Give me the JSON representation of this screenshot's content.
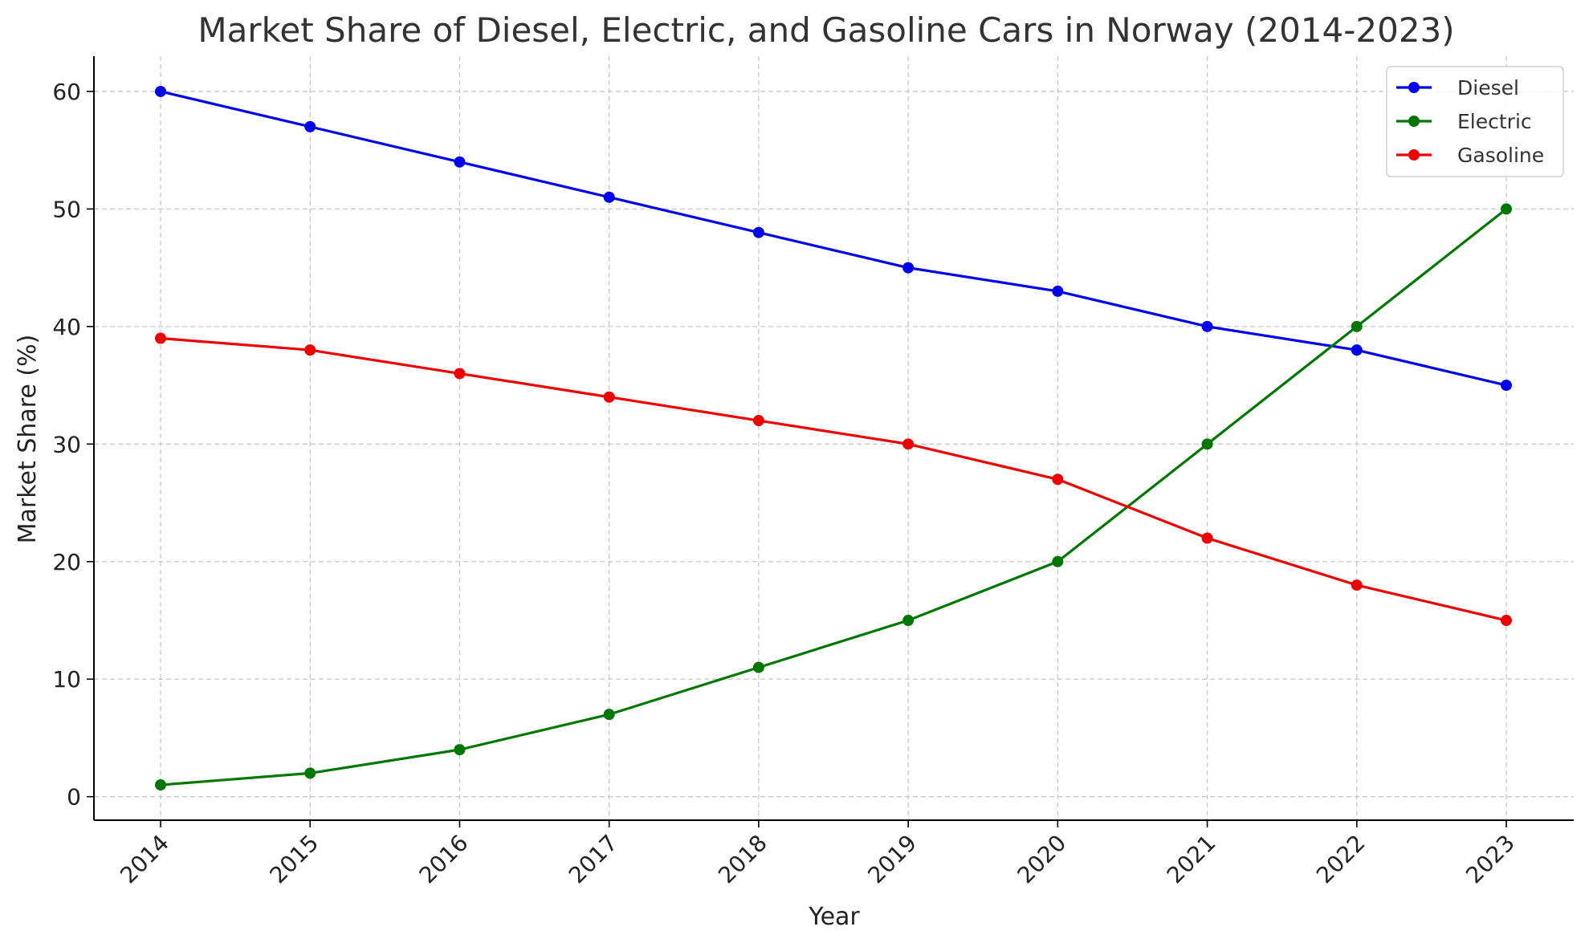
{
  "chart_data": {
    "type": "line",
    "title": "Market Share of Diesel, Electric, and Gasoline Cars in Norway (2014-2023)",
    "xlabel": "Year",
    "ylabel": "Market Share (%)",
    "x": [
      "2014",
      "2015",
      "2016",
      "2017",
      "2018",
      "2019",
      "2020",
      "2021",
      "2022",
      "2023"
    ],
    "ylim": [
      -2,
      63
    ],
    "yticks": [
      0,
      10,
      20,
      30,
      40,
      50,
      60
    ],
    "grid": true,
    "legend_position": "top-right",
    "series": [
      {
        "name": "Diesel",
        "color": "#0000ee",
        "values": [
          60,
          57,
          54,
          51,
          48,
          45,
          43,
          40,
          38,
          35
        ]
      },
      {
        "name": "Electric",
        "color": "#007700",
        "values": [
          1,
          2,
          4,
          7,
          11,
          15,
          20,
          30,
          40,
          50
        ]
      },
      {
        "name": "Gasoline",
        "color": "#ee0000",
        "values": [
          39,
          38,
          36,
          34,
          32,
          30,
          27,
          22,
          18,
          15
        ]
      }
    ]
  }
}
